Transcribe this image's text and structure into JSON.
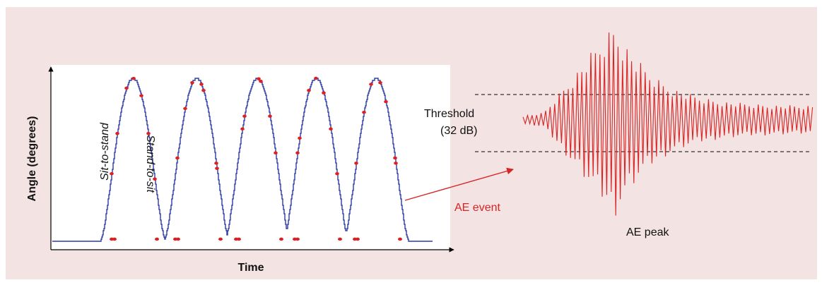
{
  "figure": {
    "panel_background": "#f3e3e3",
    "plot_background": "#ffffff"
  },
  "left_plot": {
    "ylabel": "Angle (degrees)",
    "xlabel": "Time",
    "annotations": {
      "sit_to_stand": "Sit-to-stand",
      "stand_to_sit": "Stand-to-sit"
    },
    "curve_color": "#2b3aa8",
    "event_color": "#e01e1e",
    "cycles": 5
  },
  "right_plot": {
    "threshold_label_line1": "Threshold",
    "threshold_label_line2": "(32 dB)",
    "ae_peak_label": "AE peak",
    "ae_event_label": "AE event",
    "waveform_color": "#d82424",
    "arrow_color": "#d82424"
  }
}
